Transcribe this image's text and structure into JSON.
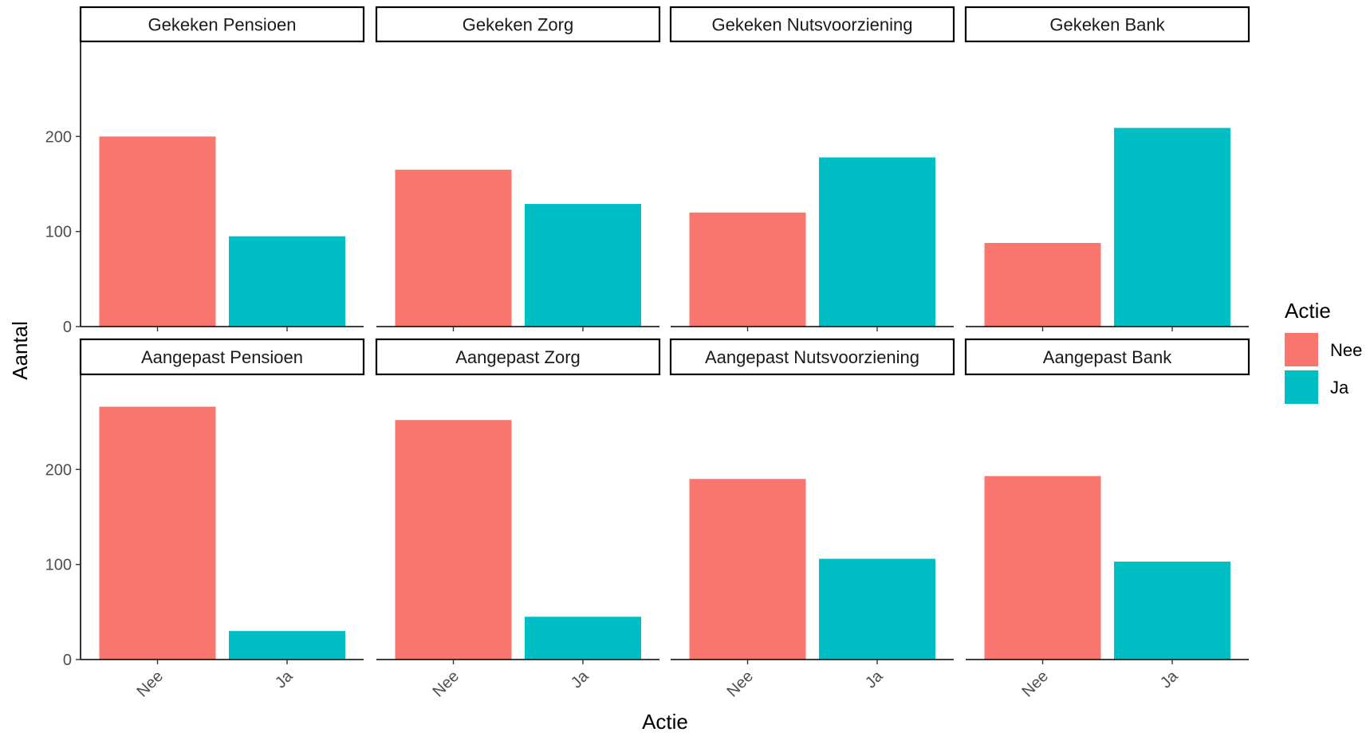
{
  "chart_data": {
    "type": "bar",
    "xlabel": "Actie",
    "ylabel": "Aantal",
    "categories": [
      "Nee",
      "Ja"
    ],
    "ylim": [
      0,
      300
    ],
    "yticks": [
      0,
      100,
      200
    ],
    "grid": false,
    "legend": {
      "title": "Actie",
      "position": "right",
      "entries": [
        {
          "label": "Nee",
          "color": "#F8766D"
        },
        {
          "label": "Ja",
          "color": "#00BFC4"
        }
      ]
    },
    "panels": [
      {
        "title": "Gekeken Pensioen",
        "values": [
          200,
          95
        ]
      },
      {
        "title": "Gekeken Zorg",
        "values": [
          165,
          129
        ]
      },
      {
        "title": "Gekeken Nutsvoorziening",
        "values": [
          120,
          178
        ]
      },
      {
        "title": "Gekeken Bank",
        "values": [
          88,
          209
        ]
      },
      {
        "title": "Aangepast Pensioen",
        "values": [
          266,
          30
        ]
      },
      {
        "title": "Aangepast Zorg",
        "values": [
          252,
          45
        ]
      },
      {
        "title": "Aangepast Nutsvoorziening",
        "values": [
          190,
          106
        ]
      },
      {
        "title": "Aangepast Bank",
        "values": [
          193,
          103
        ]
      }
    ]
  }
}
